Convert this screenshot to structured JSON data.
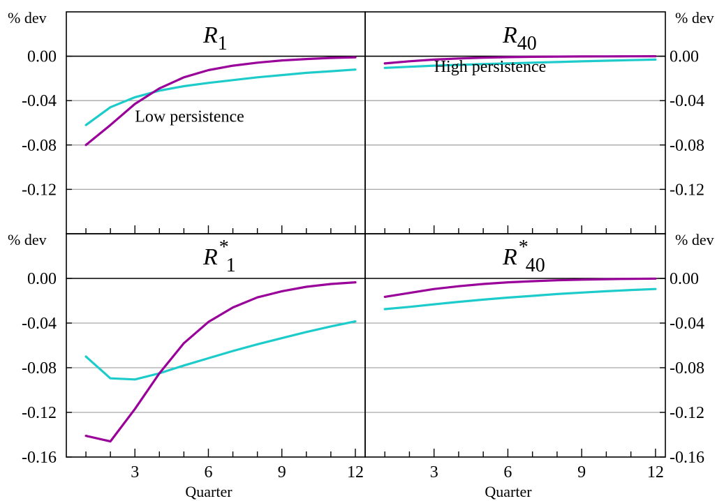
{
  "colors": {
    "low": "#990099",
    "high": "#1ecbcb",
    "grid": "#a6a6a6",
    "axis": "#000000"
  },
  "chart_data": [
    {
      "type": "line",
      "panel": "top-left",
      "title_main": "R",
      "title_sup": "",
      "title_sub": "1",
      "ylabel": "% dev",
      "xlabel": "",
      "x": [
        1,
        2,
        3,
        4,
        5,
        6,
        7,
        8,
        9,
        10,
        11,
        12
      ],
      "xticks": [
        3,
        6,
        9,
        12
      ],
      "xlim": [
        0.2,
        12.4
      ],
      "ylim": [
        -0.16,
        0.04
      ],
      "yticks": [
        0.0,
        -0.04,
        -0.08,
        -0.12
      ],
      "ytick_labels": [
        "0.00",
        "-0.04",
        "-0.08",
        "-0.12"
      ],
      "ytick_side": "left",
      "grid": true,
      "annotation": {
        "text": "Low persistence",
        "series": "low"
      },
      "series": [
        {
          "name": "Low persistence",
          "key": "low",
          "values": [
            -0.08,
            -0.062,
            -0.043,
            -0.029,
            -0.019,
            -0.0125,
            -0.0085,
            -0.0058,
            -0.0038,
            -0.0025,
            -0.0015,
            -0.001
          ]
        },
        {
          "name": "High persistence",
          "key": "high",
          "values": [
            -0.062,
            -0.046,
            -0.037,
            -0.031,
            -0.027,
            -0.024,
            -0.0215,
            -0.019,
            -0.017,
            -0.015,
            -0.0135,
            -0.012
          ]
        }
      ]
    },
    {
      "type": "line",
      "panel": "top-right",
      "title_main": "R",
      "title_sup": "",
      "title_sub": "40",
      "ylabel": "% dev",
      "xlabel": "",
      "x": [
        1,
        2,
        3,
        4,
        5,
        6,
        7,
        8,
        9,
        10,
        11,
        12
      ],
      "xticks": [
        3,
        6,
        9,
        12
      ],
      "xlim": [
        0.2,
        12.4
      ],
      "ylim": [
        -0.16,
        0.04
      ],
      "yticks": [
        0.0,
        -0.04,
        -0.08,
        -0.12
      ],
      "ytick_labels": [
        "0.00",
        "-0.04",
        "-0.08",
        "-0.12"
      ],
      "ytick_side": "right",
      "grid": true,
      "annotation": {
        "text": "High persistence",
        "series": "high"
      },
      "series": [
        {
          "name": "Low persistence",
          "key": "low",
          "values": [
            -0.0065,
            -0.0045,
            -0.003,
            -0.002,
            -0.0013,
            -0.0008,
            -0.0005,
            -0.0003,
            -0.0002,
            -0.0001,
            -5e-05,
            0.0
          ]
        },
        {
          "name": "High persistence",
          "key": "high",
          "values": [
            -0.0105,
            -0.0095,
            -0.0085,
            -0.0078,
            -0.0071,
            -0.0065,
            -0.0058,
            -0.0052,
            -0.0046,
            -0.004,
            -0.0035,
            -0.003
          ]
        }
      ]
    },
    {
      "type": "line",
      "panel": "bottom-left",
      "title_main": "R",
      "title_sup": "*",
      "title_sub": "1",
      "ylabel": "% dev",
      "xlabel": "Quarter",
      "x": [
        1,
        2,
        3,
        4,
        5,
        6,
        7,
        8,
        9,
        10,
        11,
        12
      ],
      "xticks": [
        3,
        6,
        9,
        12
      ],
      "xlim": [
        0.2,
        12.4
      ],
      "ylim": [
        -0.16,
        0.04
      ],
      "yticks": [
        0.0,
        -0.04,
        -0.08,
        -0.12,
        -0.16
      ],
      "ytick_labels": [
        "0.00",
        "-0.04",
        "-0.08",
        "-0.12",
        "-0.16"
      ],
      "ytick_side": "left",
      "grid": true,
      "series": [
        {
          "name": "Low persistence",
          "key": "low",
          "values": [
            -0.141,
            -0.146,
            -0.117,
            -0.085,
            -0.058,
            -0.039,
            -0.026,
            -0.017,
            -0.0115,
            -0.0075,
            -0.005,
            -0.0035
          ]
        },
        {
          "name": "High persistence",
          "key": "high",
          "values": [
            -0.07,
            -0.0895,
            -0.0905,
            -0.085,
            -0.078,
            -0.0715,
            -0.065,
            -0.059,
            -0.0535,
            -0.048,
            -0.043,
            -0.0385
          ]
        }
      ]
    },
    {
      "type": "line",
      "panel": "bottom-right",
      "title_main": "R",
      "title_sup": "*",
      "title_sub": "40",
      "ylabel": "% dev",
      "xlabel": "Quarter",
      "x": [
        1,
        2,
        3,
        4,
        5,
        6,
        7,
        8,
        9,
        10,
        11,
        12
      ],
      "xticks": [
        3,
        6,
        9,
        12
      ],
      "xlim": [
        0.2,
        12.4
      ],
      "ylim": [
        -0.16,
        0.04
      ],
      "yticks": [
        0.0,
        -0.04,
        -0.08,
        -0.12,
        -0.16
      ],
      "ytick_labels": [
        "0.00",
        "-0.04",
        "-0.08",
        "-0.12",
        "-0.16"
      ],
      "ytick_side": "right",
      "grid": true,
      "series": [
        {
          "name": "Low persistence",
          "key": "low",
          "values": [
            -0.0165,
            -0.013,
            -0.0095,
            -0.007,
            -0.005,
            -0.0035,
            -0.0025,
            -0.0017,
            -0.0011,
            -0.0007,
            -0.0004,
            -0.0002
          ]
        },
        {
          "name": "High persistence",
          "key": "high",
          "values": [
            -0.0275,
            -0.0255,
            -0.0232,
            -0.021,
            -0.019,
            -0.0172,
            -0.0156,
            -0.014,
            -0.0127,
            -0.0115,
            -0.0104,
            -0.0095
          ]
        }
      ]
    }
  ]
}
